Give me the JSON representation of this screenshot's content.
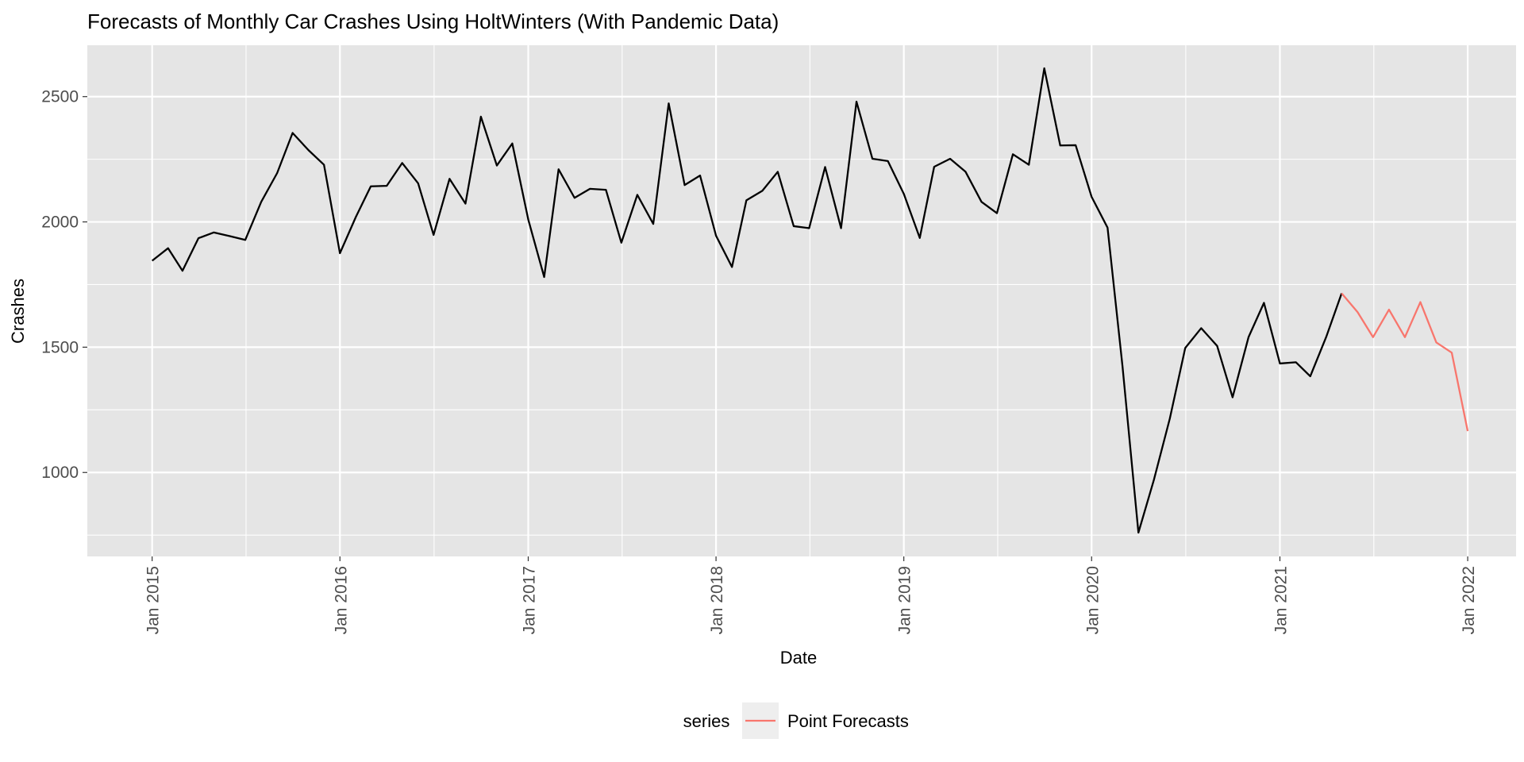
{
  "chart_data": {
    "type": "line",
    "title": "Forecasts of Monthly Car Crashes Using HoltWinters (With Pandemic Data)",
    "xlabel": "Date",
    "ylabel": "Crashes",
    "xlim": [
      "2014-08-28",
      "2022-04-05"
    ],
    "ylim": [
      665,
      2705
    ],
    "y_ticks": [
      1000,
      1500,
      2000,
      2500
    ],
    "x_ticks": [
      {
        "date": "2015-01-01",
        "label": "Jan 2015"
      },
      {
        "date": "2016-01-01",
        "label": "Jan 2016"
      },
      {
        "date": "2017-01-01",
        "label": "Jan 2017"
      },
      {
        "date": "2018-01-01",
        "label": "Jan 2018"
      },
      {
        "date": "2019-01-01",
        "label": "Jan 2019"
      },
      {
        "date": "2020-01-01",
        "label": "Jan 2020"
      },
      {
        "date": "2021-01-01",
        "label": "Jan 2021"
      },
      {
        "date": "2022-01-01",
        "label": "Jan 2022"
      }
    ],
    "grid": true,
    "panel_background": "#e5e5e5",
    "legend": {
      "position": "bottom",
      "title": "series",
      "entries": [
        "Point Forecasts"
      ]
    },
    "series": [
      {
        "color": "#000000",
        "start": "2015-01",
        "values": [
          1845,
          1895,
          1805,
          1935,
          1958,
          1943,
          1928,
          2080,
          2195,
          2355,
          2286,
          2228,
          1875,
          2020,
          2142,
          2144,
          2235,
          2154,
          1948,
          2172,
          2073,
          2420,
          2225,
          2313,
          2010,
          1780,
          2210,
          2096,
          2132,
          2128,
          1917,
          2108,
          1992,
          2473,
          2147,
          2185,
          1945,
          1820,
          2086,
          2124,
          2200,
          1983,
          1975,
          2219,
          1975,
          2480,
          2252,
          2243,
          2112,
          1936,
          2220,
          2252,
          2200,
          2080,
          2035,
          2270,
          2228,
          2613,
          2305,
          2306,
          2100,
          1977,
          1425,
          760,
          970,
          1215,
          1497,
          1576,
          1505,
          1300,
          1540,
          1677,
          1435,
          1440,
          1384,
          1541,
          1715
        ]
      },
      {
        "name": "Point Forecasts",
        "color": "#f8766d",
        "start": "2021-05",
        "values": [
          1715,
          1640,
          1540,
          1650,
          1540,
          1680,
          1519,
          1478,
          1165
        ]
      }
    ]
  }
}
